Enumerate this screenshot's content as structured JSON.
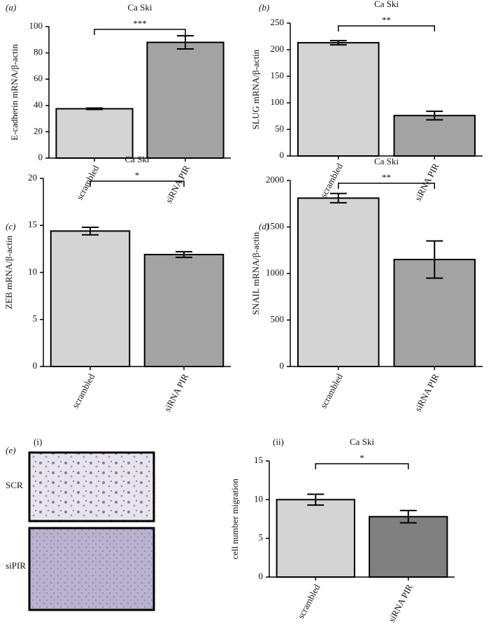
{
  "chart_data": [
    {
      "type": "bar",
      "panel": "(a)",
      "title": "Ca Ski",
      "ylabel": "E-cadherin mRNA/β-actin",
      "categories": [
        "scrambled",
        "siRNA PIR"
      ],
      "values": [
        37.5,
        88
      ],
      "errors": [
        0.5,
        5
      ],
      "colors": [
        "#d4d4d4",
        "#a3a3a3"
      ],
      "ylim": [
        0,
        100
      ],
      "yticks": [
        0,
        20,
        40,
        60,
        80,
        100
      ],
      "significance": "***"
    },
    {
      "type": "bar",
      "panel": "(b)",
      "title": "Ca Ski",
      "ylabel": "SLUG mRNA/β-actin",
      "categories": [
        "scrambled",
        "siRNA PIR"
      ],
      "values": [
        213,
        76
      ],
      "errors": [
        4,
        8
      ],
      "colors": [
        "#d4d4d4",
        "#a3a3a3"
      ],
      "ylim": [
        0,
        250
      ],
      "yticks": [
        0,
        50,
        100,
        150,
        200,
        250
      ],
      "significance": "**"
    },
    {
      "type": "bar",
      "panel": "(c)",
      "title": "Ca Ski",
      "ylabel": "ZEB mRNA/β-actin",
      "categories": [
        "scrambled",
        "siRNA PIR"
      ],
      "values": [
        14.4,
        11.9
      ],
      "errors": [
        0.4,
        0.3
      ],
      "colors": [
        "#d4d4d4",
        "#a3a3a3"
      ],
      "ylim": [
        0,
        20
      ],
      "yticks": [
        0,
        5,
        10,
        15,
        20
      ],
      "significance": "*"
    },
    {
      "type": "bar",
      "panel": "(d)",
      "title": "Ca Ski",
      "ylabel": "SNAIL mRNA/β-actin",
      "categories": [
        "scrambled",
        "siRNA PIR"
      ],
      "values": [
        1810,
        1150
      ],
      "errors": [
        50,
        200
      ],
      "colors": [
        "#d4d4d4",
        "#a3a3a3"
      ],
      "ylim": [
        0,
        2000
      ],
      "yticks": [
        0,
        500,
        1000,
        1500,
        2000
      ],
      "significance": "**"
    },
    {
      "type": "bar",
      "panel": "(ii)",
      "title": "Ca Ski",
      "ylabel": "cell number migration",
      "categories": [
        "scrambled",
        "siRNA PIR"
      ],
      "values": [
        10,
        7.8
      ],
      "errors": [
        0.7,
        0.8
      ],
      "colors": [
        "#d4d4d4",
        "#808080"
      ],
      "ylim": [
        0,
        15
      ],
      "yticks": [
        0,
        5,
        10,
        15
      ],
      "significance": "*"
    }
  ],
  "panel_e": {
    "label": "(e)",
    "sublabel": "(i)",
    "images": [
      "SCR",
      "siPIR"
    ]
  }
}
